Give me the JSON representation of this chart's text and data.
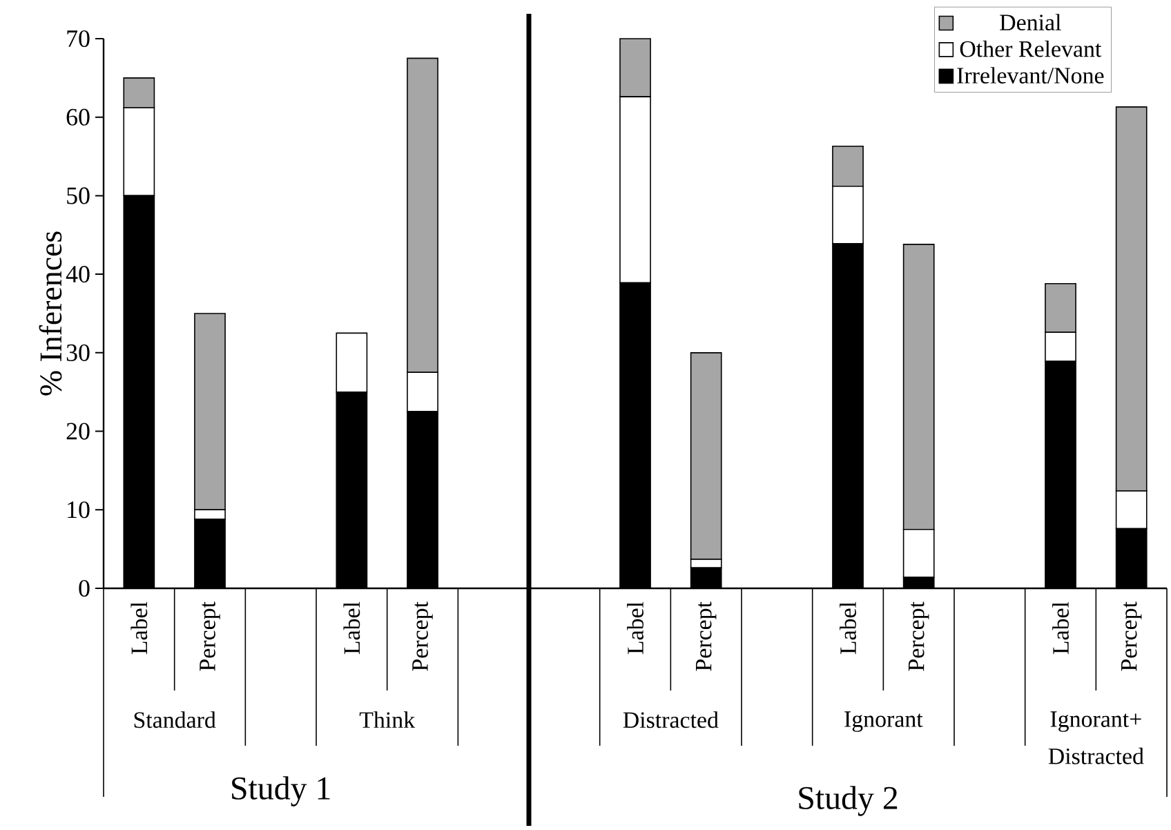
{
  "chart_data": {
    "type": "bar",
    "stacked": true,
    "ylabel": "% Inferences",
    "categories": [
      "Label",
      "Percept",
      null,
      "Label",
      "Percept",
      null,
      null,
      "Label",
      "Percept",
      null,
      "Label",
      "Percept",
      null,
      "Label",
      "Percept"
    ],
    "series": [
      {
        "name": "Irrelevant/None",
        "color": "#000000",
        "values": [
          50,
          8.8,
          null,
          25,
          22.5,
          null,
          null,
          38.9,
          2.6,
          null,
          43.9,
          1.4,
          null,
          28.9,
          7.6
        ]
      },
      {
        "name": "Other Relevant",
        "color": "#ffffff",
        "values": [
          11.2,
          1.2,
          null,
          7.5,
          5,
          null,
          null,
          23.7,
          1.1,
          null,
          7.3,
          6.1,
          null,
          3.7,
          4.8
        ]
      },
      {
        "name": "Denial",
        "color": "#a6a6a6",
        "values": [
          3.8,
          25,
          null,
          0,
          40,
          null,
          null,
          7.4,
          26.3,
          null,
          5.1,
          36.3,
          null,
          6.2,
          48.9
        ]
      }
    ],
    "ylim": [
      0,
      70
    ],
    "yticks": [
      0,
      10,
      20,
      30,
      40,
      50,
      60,
      70
    ],
    "legend": "top right",
    "grid": false,
    "annotations": [
      "Standard",
      "Think",
      "Distracted",
      "Ignorant",
      "Ignorant+ Distracted",
      "Study 1",
      "Study 2"
    ]
  }
}
